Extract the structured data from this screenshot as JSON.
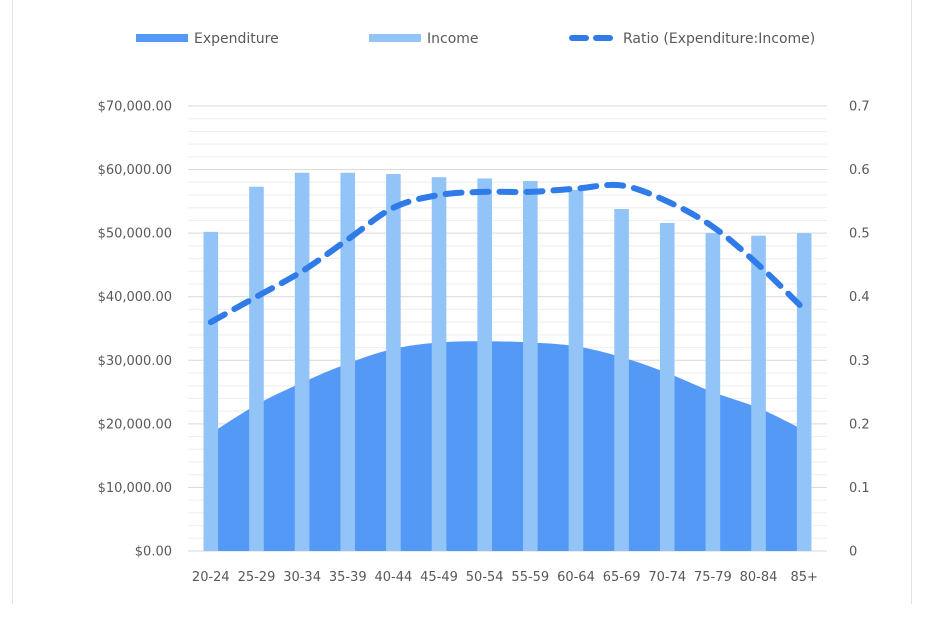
{
  "colors": {
    "expenditure": "#5599f7",
    "income": "#93c4f8",
    "ratio": "#2f7be8",
    "gridline": "#d9d9d9",
    "minor_gridline": "#eeeeee"
  },
  "chart_data": {
    "type": "bar",
    "title": "",
    "xlabel": "",
    "ylabel": "",
    "categories": [
      "20-24",
      "25-29",
      "30-34",
      "35-39",
      "40-44",
      "45-49",
      "50-54",
      "55-59",
      "60-64",
      "65-69",
      "70-74",
      "75-79",
      "80-84",
      "85+"
    ],
    "series": [
      {
        "name": "Expenditure",
        "type": "area",
        "axis": "left",
        "values": [
          18500,
          23000,
          26500,
          29500,
          31800,
          32800,
          33000,
          32800,
          32200,
          30500,
          28000,
          25000,
          22500,
          19000
        ]
      },
      {
        "name": "Income",
        "type": "bar",
        "axis": "left",
        "values": [
          50200,
          57300,
          59500,
          59500,
          59300,
          58800,
          58600,
          58200,
          56800,
          53800,
          51600,
          50000,
          49600,
          50000
        ]
      },
      {
        "name": "Ratio (Expenditure:Income)",
        "type": "line",
        "style": "dashed",
        "axis": "right",
        "values": [
          0.36,
          0.4,
          0.44,
          0.49,
          0.54,
          0.56,
          0.565,
          0.565,
          0.57,
          0.575,
          0.55,
          0.51,
          0.45,
          0.38
        ]
      }
    ],
    "y_left": {
      "ylim": [
        0,
        70000
      ],
      "ticks": [
        "$0.00",
        "$10,000.00",
        "$20,000.00",
        "$30,000.00",
        "$40,000.00",
        "$50,000.00",
        "$60,000.00",
        "$70,000.00"
      ]
    },
    "y_right": {
      "ylim": [
        0,
        0.7
      ],
      "ticks": [
        "0",
        "0.1",
        "0.2",
        "0.3",
        "0.4",
        "0.5",
        "0.6",
        "0.7"
      ]
    },
    "grid": true,
    "legend_position": "top"
  }
}
